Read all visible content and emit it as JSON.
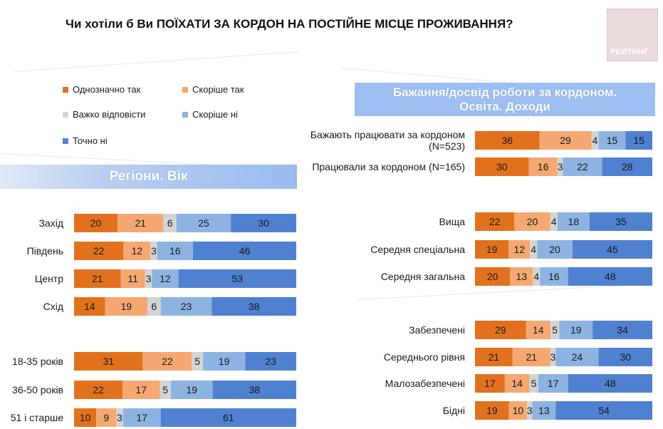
{
  "title": "Чи хотіли б Ви ПОЇХАТИ ЗА КОРДОН НА ПОСТІЙНЕ МІСЦЕ ПРОЖИВАННЯ?",
  "logo_text": "РЕЙТИНГ",
  "left_section_title": "Регіони. Вік",
  "right_section_title_line1": "Бажання/досвід роботи за кордоном.",
  "right_section_title_line2": "Освіта. Доходи",
  "legend": [
    {
      "label": "Однозначно так",
      "color": "#e2711d"
    },
    {
      "label": "Скоріше так",
      "color": "#f5a872"
    },
    {
      "label": "Важко відповісти",
      "color": "#d4d4d4"
    },
    {
      "label": "Скоріше ні",
      "color": "#8db3e2"
    },
    {
      "label": "Точно ні",
      "color": "#4f81d0"
    }
  ],
  "chart_data": [
    {
      "type": "bar",
      "stacked": true,
      "orientation": "horizontal",
      "title": "Регіони. Вік",
      "categories": [
        "Захід",
        "Південь",
        "Центр",
        "Схід",
        "18-35 років",
        "36-50 років",
        "51 і старше"
      ],
      "series": [
        {
          "name": "Однозначно так",
          "values": [
            20,
            22,
            21,
            14,
            31,
            22,
            10
          ]
        },
        {
          "name": "Скоріше так",
          "values": [
            21,
            12,
            11,
            19,
            22,
            17,
            9
          ]
        },
        {
          "name": "Важко відповісти",
          "values": [
            6,
            3,
            3,
            6,
            5,
            5,
            3
          ]
        },
        {
          "name": "Скоріше ні",
          "values": [
            25,
            16,
            12,
            23,
            19,
            19,
            17
          ]
        },
        {
          "name": "Точно ні",
          "values": [
            30,
            46,
            53,
            38,
            23,
            38,
            61
          ]
        }
      ]
    },
    {
      "type": "bar",
      "stacked": true,
      "orientation": "horizontal",
      "title": "Бажання/досвід роботи за кордоном. Освіта. Доходи",
      "categories": [
        "Бажають працювати за кордоном (N=523)",
        "Працювали за кордоном (N=165)",
        "Вища",
        "Середня спеціальна",
        "Середня загальна",
        "Забезпечені",
        "Середнього рівня",
        "Малозабезпечені",
        "Бідні"
      ],
      "series": [
        {
          "name": "Однозначно так",
          "values": [
            36,
            30,
            22,
            19,
            20,
            29,
            21,
            17,
            19
          ]
        },
        {
          "name": "Скоріше так",
          "values": [
            29,
            16,
            20,
            12,
            13,
            14,
            21,
            14,
            10
          ]
        },
        {
          "name": "Важко відповісти",
          "values": [
            4,
            3,
            4,
            4,
            4,
            5,
            3,
            5,
            3
          ]
        },
        {
          "name": "Скоріше ні",
          "values": [
            15,
            22,
            18,
            20,
            16,
            19,
            24,
            17,
            13
          ]
        },
        {
          "name": "Точно ні",
          "values": [
            15,
            28,
            35,
            45,
            48,
            34,
            30,
            48,
            54
          ]
        }
      ]
    }
  ]
}
